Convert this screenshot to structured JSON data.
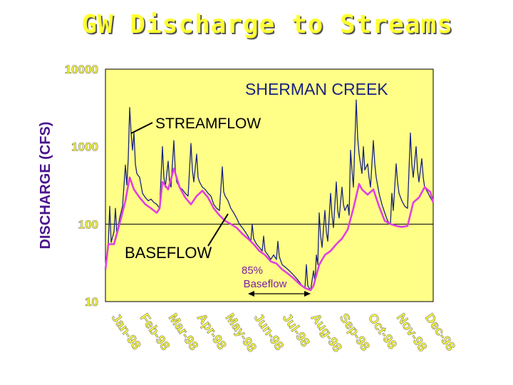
{
  "title": "GW Discharge to Streams",
  "chart_data": {
    "type": "line",
    "ylabel": "DISCHARGE (CFS)",
    "xlabel": "",
    "yscale": "log",
    "ylim": [
      10,
      10000
    ],
    "yticks": [
      10000,
      1000,
      100,
      10
    ],
    "ytick_labels": [
      "10000",
      "1000",
      "100",
      "10"
    ],
    "x_categories": [
      "Jan-98",
      "Feb-98",
      "Mar-98",
      "Apr-98",
      "May-98",
      "Jun-98",
      "Jul-98",
      "Aug-98",
      "Sep-98",
      "Oct-98",
      "Nov-98",
      "Dec-98"
    ],
    "grid": "horizontal line at 100",
    "annotations": {
      "station": "SHERMAN CREEK",
      "streamflow": "STREAMFLOW",
      "baseflow": "BASEFLOW",
      "baseflow_pct_line1": "85%",
      "baseflow_pct_line2": "Baseflow"
    },
    "series": [
      {
        "color": "#1a237e",
        "points": [
          [
            0,
            26
          ],
          [
            0.1,
            55
          ],
          [
            0.15,
            170
          ],
          [
            0.2,
            58
          ],
          [
            0.3,
            80
          ],
          [
            0.35,
            160
          ],
          [
            0.4,
            75
          ],
          [
            0.5,
            120
          ],
          [
            0.6,
            170
          ],
          [
            0.7,
            580
          ],
          [
            0.75,
            320
          ],
          [
            0.8,
            700
          ],
          [
            0.85,
            3200
          ],
          [
            0.9,
            1500
          ],
          [
            0.95,
            900
          ],
          [
            1.0,
            1500
          ],
          [
            1.05,
            600
          ],
          [
            1.1,
            450
          ],
          [
            1.2,
            400
          ],
          [
            1.3,
            250
          ],
          [
            1.4,
            220
          ],
          [
            1.5,
            200
          ],
          [
            1.6,
            210
          ],
          [
            1.7,
            190
          ],
          [
            1.8,
            180
          ],
          [
            1.9,
            160
          ],
          [
            2.0,
            1000
          ],
          [
            2.05,
            400
          ],
          [
            2.1,
            300
          ],
          [
            2.2,
            650
          ],
          [
            2.25,
            350
          ],
          [
            2.3,
            300
          ],
          [
            2.4,
            1200
          ],
          [
            2.45,
            500
          ],
          [
            2.5,
            350
          ],
          [
            2.6,
            300
          ],
          [
            2.7,
            280
          ],
          [
            2.8,
            250
          ],
          [
            2.9,
            230
          ],
          [
            3.0,
            1100
          ],
          [
            3.05,
            500
          ],
          [
            3.1,
            350
          ],
          [
            3.2,
            800
          ],
          [
            3.25,
            400
          ],
          [
            3.3,
            350
          ],
          [
            3.4,
            300
          ],
          [
            3.5,
            280
          ],
          [
            3.6,
            250
          ],
          [
            3.7,
            230
          ],
          [
            3.8,
            180
          ],
          [
            3.9,
            160
          ],
          [
            4.0,
            150
          ],
          [
            4.1,
            550
          ],
          [
            4.15,
            260
          ],
          [
            4.2,
            230
          ],
          [
            4.3,
            200
          ],
          [
            4.4,
            160
          ],
          [
            4.5,
            140
          ],
          [
            4.6,
            120
          ],
          [
            4.7,
            100
          ],
          [
            4.8,
            90
          ],
          [
            4.9,
            80
          ],
          [
            5.0,
            70
          ],
          [
            5.1,
            60
          ],
          [
            5.15,
            100
          ],
          [
            5.2,
            65
          ],
          [
            5.3,
            55
          ],
          [
            5.4,
            50
          ],
          [
            5.5,
            45
          ],
          [
            5.55,
            70
          ],
          [
            5.6,
            45
          ],
          [
            5.7,
            40
          ],
          [
            5.8,
            35
          ],
          [
            5.9,
            40
          ],
          [
            6.0,
            35
          ],
          [
            6.05,
            60
          ],
          [
            6.1,
            38
          ],
          [
            6.2,
            30
          ],
          [
            6.3,
            28
          ],
          [
            6.4,
            26
          ],
          [
            6.5,
            24
          ],
          [
            6.6,
            22
          ],
          [
            6.7,
            20
          ],
          [
            6.8,
            18
          ],
          [
            6.9,
            16
          ],
          [
            7.0,
            15
          ],
          [
            7.05,
            30
          ],
          [
            7.1,
            16
          ],
          [
            7.2,
            14
          ],
          [
            7.3,
            25
          ],
          [
            7.35,
            18
          ],
          [
            7.4,
            40
          ],
          [
            7.45,
            30
          ],
          [
            7.5,
            140
          ],
          [
            7.55,
            70
          ],
          [
            7.6,
            50
          ],
          [
            7.7,
            150
          ],
          [
            7.75,
            80
          ],
          [
            7.8,
            60
          ],
          [
            7.9,
            250
          ],
          [
            7.95,
            130
          ],
          [
            8.0,
            90
          ],
          [
            8.1,
            350
          ],
          [
            8.15,
            150
          ],
          [
            8.2,
            120
          ],
          [
            8.3,
            300
          ],
          [
            8.35,
            180
          ],
          [
            8.4,
            150
          ],
          [
            8.5,
            180
          ],
          [
            8.55,
            130
          ],
          [
            8.6,
            900
          ],
          [
            8.65,
            500
          ],
          [
            8.7,
            300
          ],
          [
            8.8,
            4000
          ],
          [
            8.85,
            1300
          ],
          [
            8.9,
            800
          ],
          [
            9.0,
            450
          ],
          [
            9.05,
            1000
          ],
          [
            9.1,
            500
          ],
          [
            9.2,
            600
          ],
          [
            9.25,
            400
          ],
          [
            9.3,
            300
          ],
          [
            9.4,
            1200
          ],
          [
            9.45,
            600
          ],
          [
            9.5,
            400
          ],
          [
            9.6,
            250
          ],
          [
            9.7,
            180
          ],
          [
            9.8,
            140
          ],
          [
            9.9,
            110
          ],
          [
            10.0,
            100
          ],
          [
            10.05,
            250
          ],
          [
            10.1,
            150
          ],
          [
            10.2,
            600
          ],
          [
            10.25,
            350
          ],
          [
            10.3,
            250
          ],
          [
            10.4,
            200
          ],
          [
            10.5,
            170
          ],
          [
            10.6,
            160
          ],
          [
            10.7,
            1500
          ],
          [
            10.75,
            600
          ],
          [
            10.8,
            400
          ],
          [
            10.9,
            1000
          ],
          [
            10.95,
            500
          ],
          [
            11.0,
            350
          ],
          [
            11.1,
            700
          ],
          [
            11.15,
            400
          ],
          [
            11.2,
            300
          ],
          [
            11.3,
            260
          ],
          [
            11.4,
            220
          ],
          [
            11.5,
            190
          ]
        ]
      },
      {
        "color": "#e040e0",
        "points": [
          [
            0,
            26
          ],
          [
            0.1,
            55
          ],
          [
            0.3,
            55
          ],
          [
            0.4,
            75
          ],
          [
            0.55,
            120
          ],
          [
            0.7,
            200
          ],
          [
            0.85,
            400
          ],
          [
            1.0,
            280
          ],
          [
            1.2,
            220
          ],
          [
            1.4,
            180
          ],
          [
            1.6,
            160
          ],
          [
            1.8,
            140
          ],
          [
            1.9,
            160
          ],
          [
            2.0,
            350
          ],
          [
            2.2,
            280
          ],
          [
            2.4,
            520
          ],
          [
            2.6,
            300
          ],
          [
            2.8,
            220
          ],
          [
            3.0,
            180
          ],
          [
            3.2,
            230
          ],
          [
            3.4,
            270
          ],
          [
            3.6,
            220
          ],
          [
            3.8,
            160
          ],
          [
            4.0,
            130
          ],
          [
            4.2,
            110
          ],
          [
            4.4,
            100
          ],
          [
            4.6,
            90
          ],
          [
            4.8,
            75
          ],
          [
            5.0,
            65
          ],
          [
            5.2,
            55
          ],
          [
            5.4,
            45
          ],
          [
            5.6,
            40
          ],
          [
            5.8,
            33
          ],
          [
            6.0,
            31
          ],
          [
            6.2,
            26
          ],
          [
            6.4,
            23
          ],
          [
            6.6,
            20
          ],
          [
            6.8,
            17
          ],
          [
            7.0,
            15
          ],
          [
            7.2,
            14
          ],
          [
            7.3,
            16
          ],
          [
            7.5,
            30
          ],
          [
            7.7,
            40
          ],
          [
            7.9,
            45
          ],
          [
            8.1,
            55
          ],
          [
            8.3,
            65
          ],
          [
            8.5,
            85
          ],
          [
            8.7,
            160
          ],
          [
            8.9,
            330
          ],
          [
            9.0,
            280
          ],
          [
            9.2,
            240
          ],
          [
            9.4,
            280
          ],
          [
            9.6,
            170
          ],
          [
            9.8,
            110
          ],
          [
            10.0,
            100
          ],
          [
            10.2,
            95
          ],
          [
            10.4,
            92
          ],
          [
            10.6,
            95
          ],
          [
            10.8,
            190
          ],
          [
            11.0,
            220
          ],
          [
            11.2,
            300
          ],
          [
            11.4,
            260
          ],
          [
            11.5,
            190
          ]
        ]
      }
    ]
  }
}
